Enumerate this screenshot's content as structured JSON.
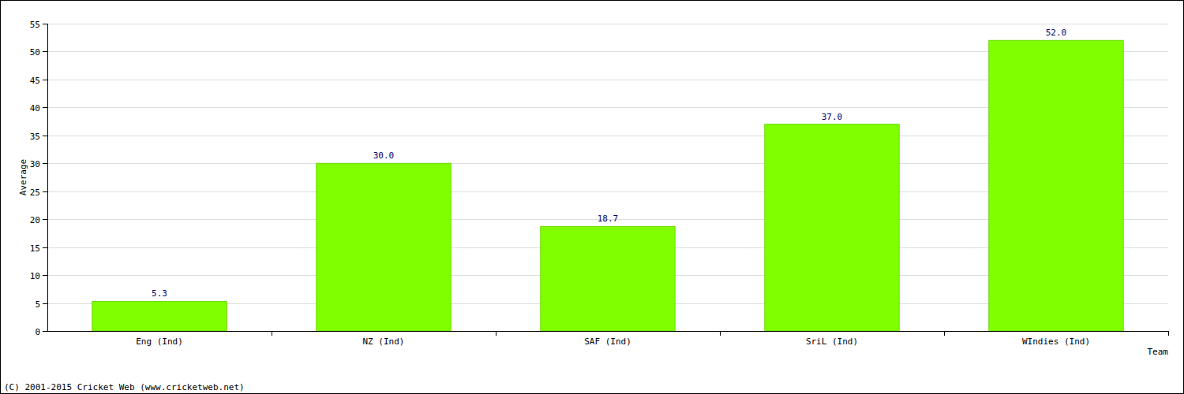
{
  "chart_data": {
    "type": "bar",
    "y_label": "Average",
    "x_label": "Team",
    "annotations": [
      "(C) 2001-2015 Cricket Web (www.cricketweb.net)"
    ],
    "categories": [
      "Eng (Ind)",
      "NZ (Ind)",
      "SAF (Ind)",
      "SriL (Ind)",
      "WIndies (Ind)"
    ],
    "values": [
      5.3,
      30.0,
      18.7,
      37.0,
      52.0
    ],
    "value_labels": [
      "5.3",
      "30.0",
      "18.7",
      "37.0",
      "52.0"
    ],
    "color": "#7fff00",
    "ylim": [
      0,
      55
    ],
    "yticks": [
      0,
      5,
      10,
      15,
      20,
      25,
      30,
      35,
      40,
      45,
      50,
      55
    ],
    "grid": true,
    "data_labels": true
  }
}
